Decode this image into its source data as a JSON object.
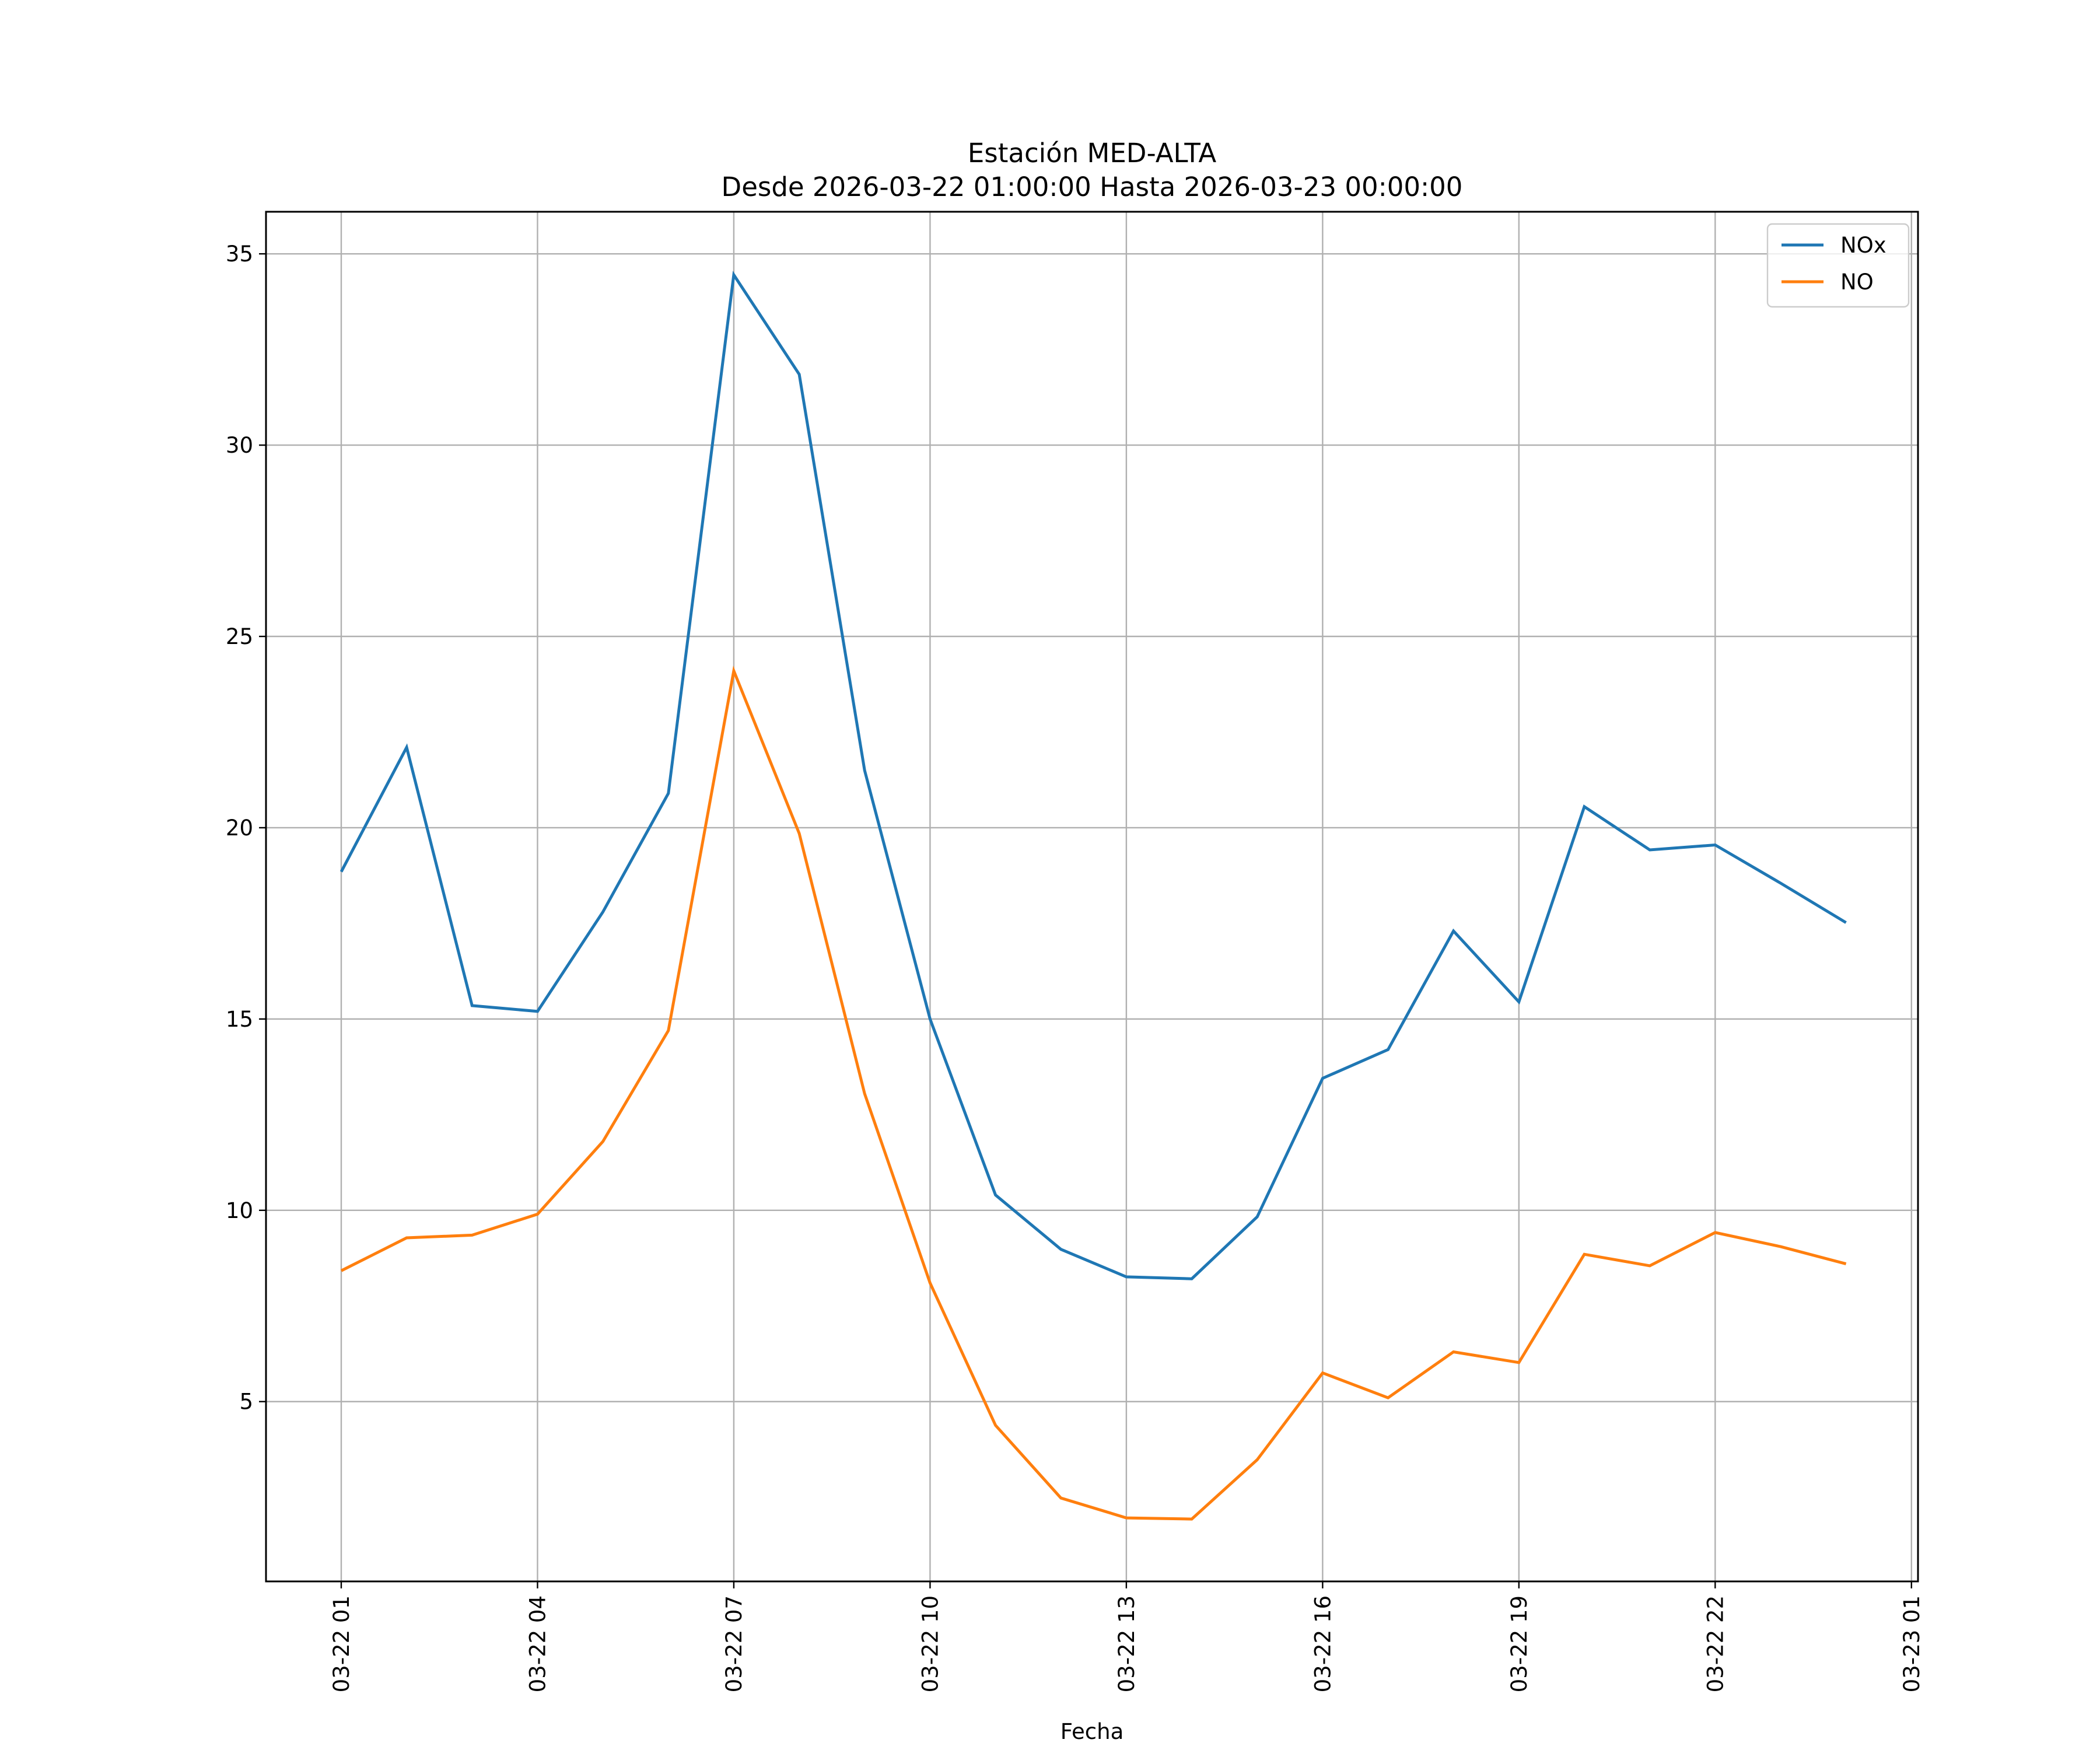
{
  "chart_data": {
    "type": "line",
    "title": "Estación MED-ALTA",
    "subtitle": "Desde 2026-03-22 01:00:00 Hasta 2026-03-23 00:00:00",
    "xlabel": "Fecha",
    "ylabel": "",
    "grid": true,
    "legend_position": "top-right",
    "x": [
      "01:00",
      "02:00",
      "03:00",
      "04:00",
      "05:00",
      "06:00",
      "07:00",
      "08:00",
      "09:00",
      "10:00",
      "11:00",
      "12:00",
      "13:00",
      "14:00",
      "15:00",
      "16:00",
      "17:00",
      "18:00",
      "19:00",
      "20:00",
      "21:00",
      "22:00",
      "23:00",
      "24:00"
    ],
    "x_hours": [
      1,
      2,
      3,
      4,
      5,
      6,
      7,
      8,
      9,
      10,
      11,
      12,
      13,
      14,
      15,
      16,
      17,
      18,
      19,
      20,
      21,
      22,
      23,
      24
    ],
    "xlim": [
      -0.15,
      25.1
    ],
    "ylim": [
      0.3,
      36.1
    ],
    "xticks": [
      {
        "hour": 1,
        "label": "03-22 01"
      },
      {
        "hour": 4,
        "label": "03-22 04"
      },
      {
        "hour": 7,
        "label": "03-22 07"
      },
      {
        "hour": 10,
        "label": "03-22 10"
      },
      {
        "hour": 13,
        "label": "03-22 13"
      },
      {
        "hour": 16,
        "label": "03-22 16"
      },
      {
        "hour": 19,
        "label": "03-22 19"
      },
      {
        "hour": 22,
        "label": "03-22 22"
      },
      {
        "hour": 25,
        "label": "03-23 01"
      }
    ],
    "yticks": [
      {
        "value": 5,
        "label": "5"
      },
      {
        "value": 10,
        "label": "10"
      },
      {
        "value": 15,
        "label": "15"
      },
      {
        "value": 20,
        "label": "20"
      },
      {
        "value": 25,
        "label": "25"
      },
      {
        "value": 30,
        "label": "30"
      },
      {
        "value": 35,
        "label": "35"
      }
    ],
    "series": [
      {
        "name": "NOx",
        "color": "#1f77b4",
        "values": [
          18.85,
          22.1,
          15.35,
          15.2,
          17.8,
          20.9,
          34.45,
          31.85,
          21.5,
          15.0,
          10.4,
          8.98,
          8.26,
          8.21,
          9.83,
          13.45,
          14.2,
          17.3,
          15.45,
          20.55,
          19.42,
          19.55,
          18.55,
          17.52
        ]
      },
      {
        "name": "NO",
        "color": "#ff7f0e",
        "values": [
          8.42,
          9.28,
          9.35,
          9.9,
          11.8,
          14.7,
          24.1,
          19.85,
          13.05,
          8.1,
          4.38,
          2.48,
          1.96,
          1.93,
          3.48,
          5.75,
          5.1,
          6.3,
          6.02,
          8.85,
          8.55,
          9.42,
          9.05,
          8.6
        ]
      }
    ]
  }
}
